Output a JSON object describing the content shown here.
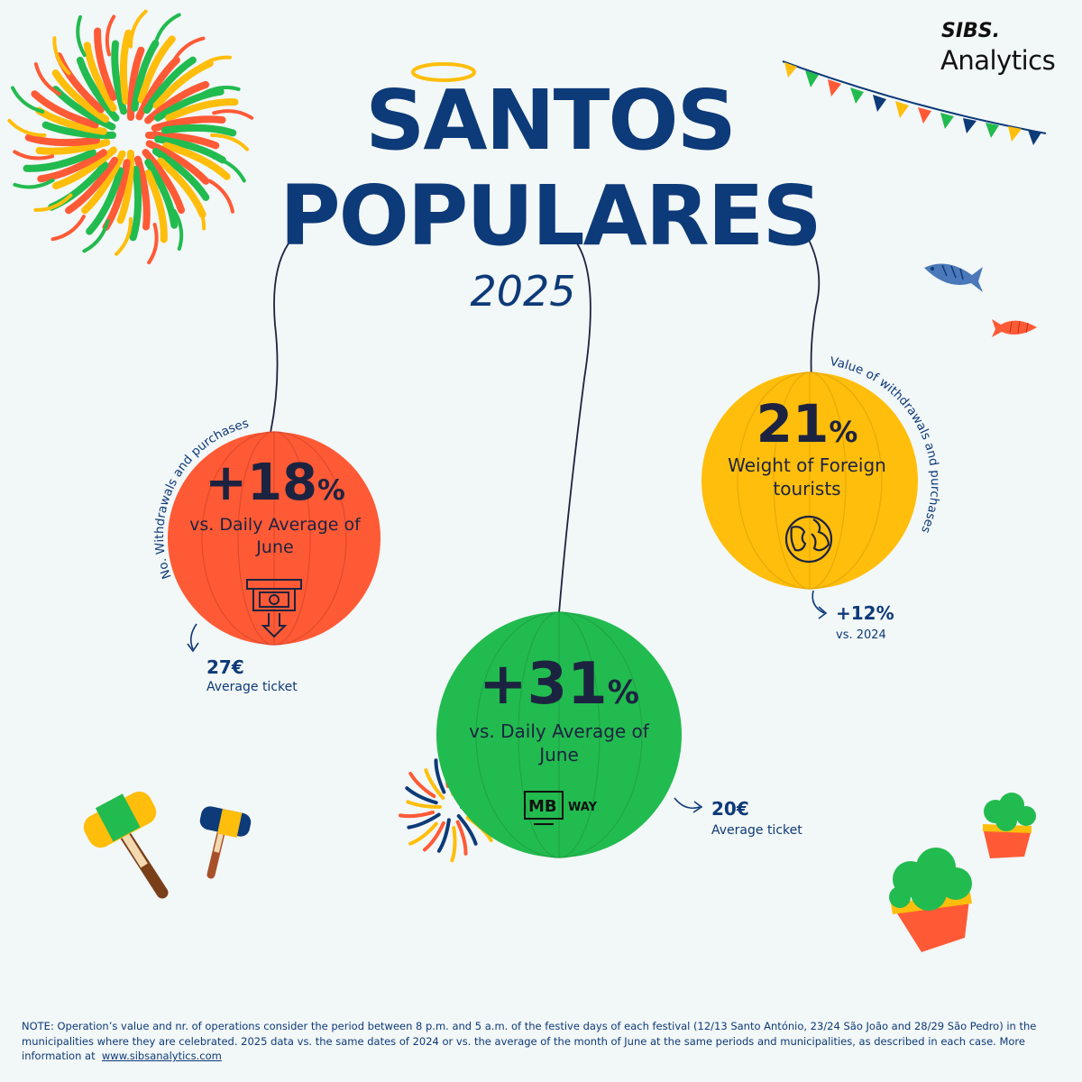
{
  "brand": {
    "name": "SIBS.",
    "product": "Analytics"
  },
  "title": {
    "line1": "SANTOS",
    "line2": "POPULARES",
    "year": "2025"
  },
  "balloons": {
    "withdrawals": {
      "curved_label": "No. Withdrawals and purchases",
      "value": "+18",
      "unit": "%",
      "caption": "vs. Daily Average of June",
      "side_value": "27€",
      "side_label": "Average ticket",
      "color": "#ff5a36",
      "icon": "atm-cash-icon"
    },
    "mbway": {
      "value": "+31",
      "unit": "%",
      "caption": "vs. Daily Average of June",
      "logo_mb": "MB",
      "logo_way": "WAY",
      "side_value": "20€",
      "side_label": "Average ticket",
      "color": "#22bb4f",
      "icon": "mbway-logo-icon"
    },
    "foreign": {
      "curved_label": "Value of withdrawals and purchases",
      "value": "21",
      "unit": "%",
      "caption": "Weight  of Foreign tourists",
      "side_value": "+12%",
      "side_label": "vs. 2024",
      "color": "#ffbe0b",
      "icon": "globe-icon"
    }
  },
  "note": {
    "text": "NOTE: Operation’s value and nr. of operations consider the period between 8 p.m. and 5 a.m. of the festive days of each festival (12/13 Santo António, 23/24 São João and 28/29 São Pedro) in the municipalities where they are celebrated. 2025 data vs. the same dates of 2024 or vs. the average of the month of June at the same periods and municipalities, as described in each case. More information at",
    "link": "www.sibsanalytics.com"
  }
}
